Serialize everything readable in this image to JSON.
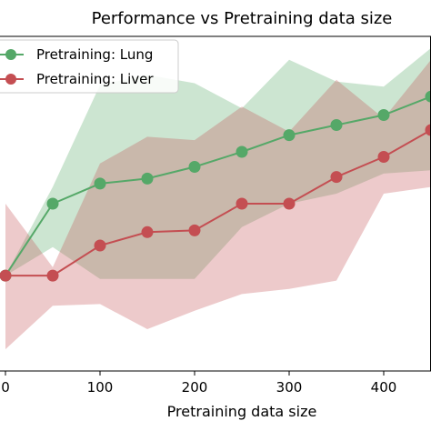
{
  "chart_data": {
    "type": "line",
    "title": "Performance vs Pretraining data size",
    "xlabel": "Pretraining data size",
    "ylabel": "",
    "xlim": [
      0,
      450
    ],
    "ylim": [
      0.0,
      1.0
    ],
    "xticks": [
      0,
      100,
      200,
      300,
      400
    ],
    "xtick_labels": [
      "0",
      "100",
      "200",
      "300",
      "400"
    ],
    "grid": false,
    "legend_position": "top-left",
    "x": [
      0,
      50,
      100,
      150,
      200,
      250,
      300,
      350,
      400,
      450
    ],
    "series": [
      {
        "name": "Pretraining: Lung",
        "color": "#55a868",
        "values": [
          0.285,
          0.5,
          0.56,
          0.575,
          0.61,
          0.655,
          0.705,
          0.735,
          0.765,
          0.82
        ],
        "lower": [
          0.285,
          0.37,
          0.275,
          0.275,
          0.275,
          0.43,
          0.5,
          0.53,
          0.59,
          0.6
        ],
        "upper": [
          0.285,
          0.55,
          0.855,
          0.885,
          0.86,
          0.785,
          0.93,
          0.865,
          0.85,
          0.965
        ]
      },
      {
        "name": "Pretraining: Liver",
        "color": "#c44e52",
        "values": [
          0.285,
          0.285,
          0.375,
          0.415,
          0.42,
          0.5,
          0.5,
          0.58,
          0.64,
          0.72
        ],
        "lower": [
          0.065,
          0.195,
          0.2,
          0.125,
          0.18,
          0.23,
          0.245,
          0.27,
          0.53,
          0.55
        ],
        "upper": [
          0.5,
          0.31,
          0.62,
          0.7,
          0.69,
          0.79,
          0.715,
          0.87,
          0.755,
          0.93
        ]
      }
    ]
  }
}
